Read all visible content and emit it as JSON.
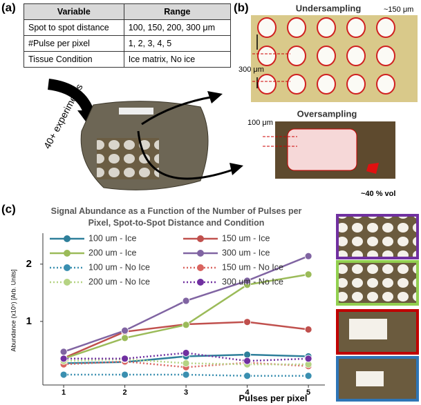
{
  "panel_labels": [
    "(a)",
    "(b)",
    "(c)"
  ],
  "table": {
    "header": [
      "Variable",
      "Range"
    ],
    "rows": [
      [
        "Spot to spot distance",
        "100, 150, 200, 300 μm"
      ],
      [
        "#Pulse per pixel",
        "1, 2, 3, 4, 5"
      ],
      [
        "Tissue Condition",
        "Ice matrix, No ice"
      ]
    ]
  },
  "arrow_label": "40+ experiments",
  "panel_b": {
    "undersampling": {
      "title": "Undersampling",
      "spot_label": "~150 μm",
      "spacing_label": "300 μm"
    },
    "oversampling": {
      "title": "Oversampling",
      "spacing_label": "100 μm",
      "overlap_label": "~40 % vol"
    }
  },
  "chart_data": {
    "type": "line",
    "title": "Signal Abundance as a Function of the Number of Pulses per Pixel, Spot-to-Spot Distance and Condition",
    "x_label": "Pulses per pixel",
    "y_label": "Abundance (x10⁵)  [Arb. Units]",
    "x": [
      1,
      2,
      3,
      4,
      5
    ],
    "xlim": [
      0.66,
      5.27
    ],
    "xticks": [
      1,
      2,
      3,
      4,
      5
    ],
    "ylim": [
      -0.11,
      2.54
    ],
    "yticks": [
      1,
      2
    ],
    "grid": false,
    "series": [
      {
        "name": "100 um - Ice",
        "color": "#2e7f9a",
        "style": "solid",
        "values": [
          0.27,
          0.29,
          0.39,
          0.42,
          0.39
        ]
      },
      {
        "name": "150 um - Ice",
        "color": "#c0504d",
        "style": "solid",
        "values": [
          0.36,
          0.82,
          0.95,
          0.99,
          0.86
        ]
      },
      {
        "name": "200 um - Ice",
        "color": "#9bbb59",
        "style": "solid",
        "values": [
          0.35,
          0.71,
          0.94,
          1.64,
          1.82
        ]
      },
      {
        "name": "300 um - Ice",
        "color": "#8064a2",
        "style": "solid",
        "values": [
          0.47,
          0.84,
          1.36,
          1.71,
          2.14
        ]
      },
      {
        "name": "100 um - No Ice",
        "color": "#3a8fb0",
        "style": "dotted",
        "values": [
          0.07,
          0.07,
          0.07,
          0.05,
          0.05
        ]
      },
      {
        "name": "150 um - No Ice",
        "color": "#d9645f",
        "style": "dotted",
        "values": [
          0.25,
          0.3,
          0.2,
          0.28,
          0.22
        ]
      },
      {
        "name": "200 um - No Ice",
        "color": "#b5d383",
        "style": "dotted",
        "values": [
          0.31,
          0.34,
          0.27,
          0.25,
          0.25
        ]
      },
      {
        "name": "300 um - No Ice",
        "color": "#7030a0",
        "style": "dotted",
        "values": [
          0.35,
          0.35,
          0.45,
          0.31,
          0.35
        ]
      }
    ]
  }
}
